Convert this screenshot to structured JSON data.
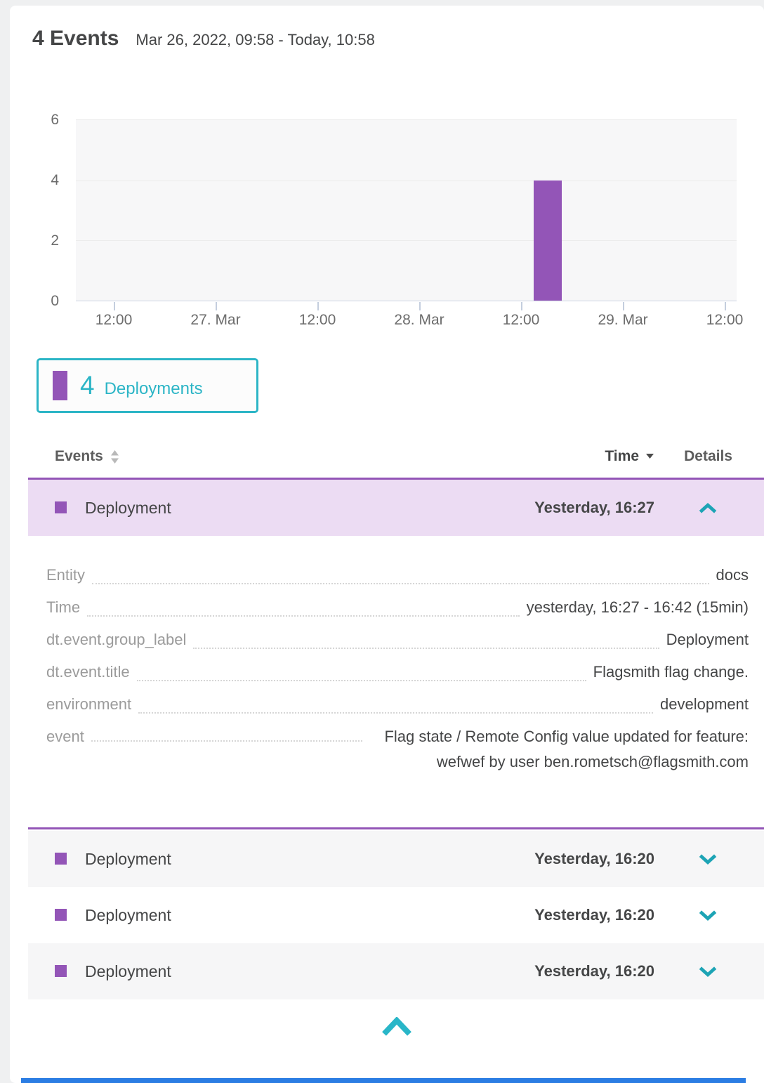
{
  "colors": {
    "purple": "#9355b7",
    "lavender": "#ecdcf3",
    "teal": "#1da4b5",
    "teal-bright": "#2cb5c6",
    "blue-bar": "#2b7de3"
  },
  "header": {
    "title": "4 Events",
    "timeframe": "Mar 26, 2022, 09:58 - Today, 10:58"
  },
  "chart_data": {
    "type": "bar",
    "title": "",
    "xlabel": "",
    "ylabel": "",
    "ylim": [
      0,
      6
    ],
    "y_tick_labels": [
      "6",
      "4",
      "2",
      "0"
    ],
    "x_ticks": [
      "12:00",
      "27. Mar",
      "12:00",
      "28. Mar",
      "12:00",
      "29. Mar",
      "12:00"
    ],
    "grid": true,
    "legend_position": "below-left",
    "series": [
      {
        "name": "Deployments",
        "color": "#9355b7",
        "points": [
          {
            "x": "28. Mar afternoon",
            "y": 4
          }
        ]
      }
    ],
    "bar_left_frac": 0.693,
    "bar_width_frac": 0.0425
  },
  "legend": {
    "count": "4",
    "label": "Deployments"
  },
  "table": {
    "headers": {
      "events": "Events",
      "time": "Time",
      "details": "Details"
    },
    "rows": [
      {
        "event": "Deployment",
        "time": "Yesterday, 16:27",
        "state": "expanded"
      },
      {
        "event": "Deployment",
        "time": "Yesterday, 16:20",
        "state": "collapsed"
      },
      {
        "event": "Deployment",
        "time": "Yesterday, 16:20",
        "state": "collapsed"
      },
      {
        "event": "Deployment",
        "time": "Yesterday, 16:20",
        "state": "collapsed"
      }
    ],
    "expanded_details": [
      {
        "key": "Entity",
        "value": "docs"
      },
      {
        "key": "Time",
        "value": "yesterday, 16:27 - 16:42 (15min)"
      },
      {
        "key": "dt.event.group_label",
        "value": "Deployment"
      },
      {
        "key": "dt.event.title",
        "value": "Flagsmith flag change."
      },
      {
        "key": "environment",
        "value": "development"
      },
      {
        "key": "event",
        "value": "Flag state / Remote Config value updated for feature: wefwef by user ben.rometsch@flagsmith.com"
      }
    ]
  }
}
